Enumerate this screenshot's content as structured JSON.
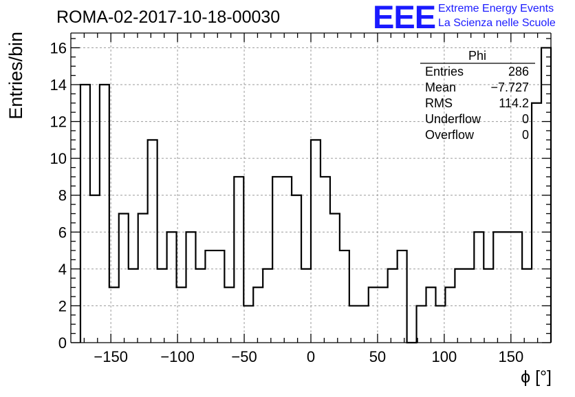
{
  "chart_data": {
    "type": "bar",
    "title": "ROMA-02-2017-10-18-00030",
    "xlabel": "ϕ [°]",
    "ylabel": "Entries/bin",
    "xlim": [
      -180,
      180
    ],
    "ylim": [
      0,
      16.8
    ],
    "bin_width": 7.2,
    "bin_start": -172.8,
    "xticks": [
      -150,
      -100,
      -50,
      0,
      50,
      100,
      150
    ],
    "xtick_labels": [
      "−150",
      "−100",
      "−50",
      "0",
      "50",
      "100",
      "150"
    ],
    "yticks": [
      0,
      2,
      4,
      6,
      8,
      10,
      12,
      14,
      16
    ],
    "ytick_labels": [
      "0",
      "2",
      "4",
      "6",
      "8",
      "10",
      "12",
      "14",
      "16"
    ],
    "values": [
      14,
      8,
      14,
      3,
      7,
      4,
      7,
      11,
      4,
      6,
      3,
      6,
      4,
      5,
      5,
      3,
      9,
      2,
      3,
      4,
      9,
      9,
      8,
      4,
      11,
      9,
      7,
      5,
      2,
      2,
      3,
      3,
      4,
      5,
      0,
      2,
      3,
      2,
      3,
      4,
      4,
      6,
      4,
      6,
      6,
      6,
      4,
      13,
      16
    ],
    "grid": true,
    "line_color": "#000000"
  },
  "stats_box": {
    "title": "Phi",
    "rows": [
      {
        "label": "Entries",
        "value": "286"
      },
      {
        "label": "Mean",
        "value": "−7.727"
      },
      {
        "label": "RMS",
        "value": "114.2"
      },
      {
        "label": "Underflow",
        "value": "0"
      },
      {
        "label": "Overflow",
        "value": "0"
      }
    ]
  },
  "logo": {
    "mark": "EEE",
    "line1": "Extreme Energy Events",
    "line2": "La Scienza nelle Scuole",
    "color": "#1a1aff"
  }
}
